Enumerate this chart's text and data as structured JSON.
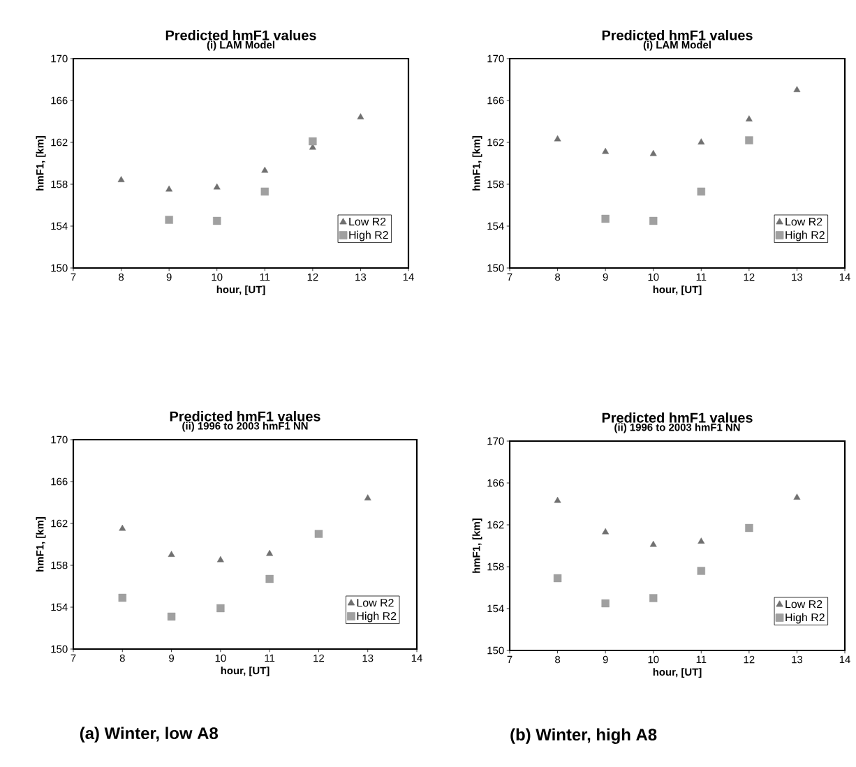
{
  "chart_data": [
    {
      "type": "scatter",
      "title": "Predicted hmF1 values",
      "subtitle": "(i) LAM Model",
      "xlabel": "hour, [UT]",
      "ylabel": "hmF1, [km]",
      "x": [
        8,
        9,
        10,
        11,
        12,
        13
      ],
      "xlim": [
        7,
        14
      ],
      "xticks": [
        7,
        8,
        9,
        10,
        11,
        12,
        13,
        14
      ],
      "ylim": [
        150,
        170
      ],
      "yticks": [
        150,
        154,
        158,
        162,
        166,
        170
      ],
      "legend": "right",
      "series": [
        {
          "name": "Low R2",
          "color": "#707070",
          "marker": "triangle",
          "values": [
            158.4,
            157.5,
            157.7,
            159.3,
            161.5,
            164.4
          ]
        },
        {
          "name": "High R2",
          "color": "#a0a0a0",
          "marker": "square",
          "values": [
            null,
            154.6,
            154.5,
            157.3,
            162.1,
            null
          ]
        }
      ]
    },
    {
      "type": "scatter",
      "title": "Predicted hmF1 values",
      "subtitle": "(i) LAM Model",
      "xlabel": "hour, [UT]",
      "ylabel": "hmF1, [km]",
      "x": [
        8,
        9,
        10,
        11,
        12,
        13
      ],
      "xlim": [
        7,
        14
      ],
      "xticks": [
        7,
        8,
        9,
        10,
        11,
        12,
        13,
        14
      ],
      "ylim": [
        150,
        170
      ],
      "yticks": [
        150,
        154,
        158,
        162,
        166,
        170
      ],
      "legend": "right",
      "series": [
        {
          "name": "Low R2",
          "color": "#707070",
          "marker": "triangle",
          "values": [
            162.3,
            161.1,
            160.9,
            162.0,
            164.2,
            167.0
          ]
        },
        {
          "name": "High R2",
          "color": "#a0a0a0",
          "marker": "square",
          "values": [
            null,
            154.7,
            154.5,
            157.3,
            162.2,
            null
          ]
        }
      ]
    },
    {
      "type": "scatter",
      "title": "Predicted hmF1 values",
      "subtitle": "(ii) 1996 to 2003 hmF1 NN",
      "xlabel": "hour, [UT]",
      "ylabel": "hmF1, [km]",
      "x": [
        8,
        9,
        10,
        11,
        12,
        13
      ],
      "xlim": [
        7,
        14
      ],
      "xticks": [
        7,
        8,
        9,
        10,
        11,
        12,
        13,
        14
      ],
      "ylim": [
        150,
        170
      ],
      "yticks": [
        150,
        154,
        158,
        162,
        166,
        170
      ],
      "legend": "right",
      "annotations": [
        "(a) Winter, low A8"
      ],
      "series": [
        {
          "name": "Low R2",
          "color": "#707070",
          "marker": "triangle",
          "values": [
            161.5,
            159.0,
            158.5,
            159.1,
            null,
            164.4
          ]
        },
        {
          "name": "High R2",
          "color": "#a0a0a0",
          "marker": "square",
          "values": [
            154.9,
            153.1,
            153.9,
            156.7,
            161.0,
            null
          ]
        }
      ]
    },
    {
      "type": "scatter",
      "title": "Predicted hmF1 values",
      "subtitle": "(ii) 1996 to 2003 hmF1 NN",
      "xlabel": "hour, [UT]",
      "ylabel": "hmF1, [km]",
      "x": [
        8,
        9,
        10,
        11,
        12,
        13
      ],
      "xlim": [
        7,
        14
      ],
      "xticks": [
        7,
        8,
        9,
        10,
        11,
        12,
        13,
        14
      ],
      "ylim": [
        150,
        170
      ],
      "yticks": [
        150,
        154,
        158,
        162,
        166,
        170
      ],
      "legend": "right",
      "annotations": [
        "(b) Winter, high A8"
      ],
      "series": [
        {
          "name": "Low R2",
          "color": "#707070",
          "marker": "triangle",
          "values": [
            164.3,
            161.3,
            160.1,
            160.4,
            null,
            164.6
          ]
        },
        {
          "name": "High R2",
          "color": "#a0a0a0",
          "marker": "square",
          "values": [
            156.9,
            154.5,
            155.0,
            157.6,
            161.7,
            null
          ]
        }
      ]
    }
  ]
}
